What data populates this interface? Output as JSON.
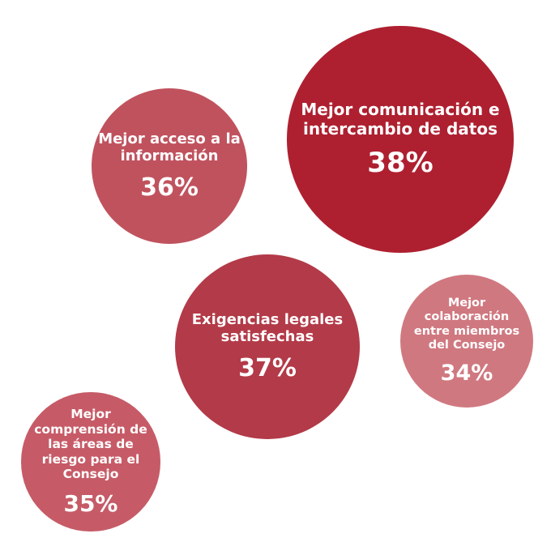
{
  "chart_data": {
    "type": "bubble",
    "categories": [
      "Mejor acceso a la información",
      "Mejor comunicación e intercambio de datos",
      "Exigencias legales satisfechas",
      "Mejor colaboración entre miembros del Consejo",
      "Mejor comprensión de las áreas de riesgo para el Consejo"
    ],
    "values": [
      36,
      38,
      37,
      34,
      35
    ],
    "value_labels": [
      "36%",
      "38%",
      "37%",
      "34%",
      "35%"
    ],
    "colors": [
      "#c0525e",
      "#ae2030",
      "#b33a48",
      "#d07880",
      "#c65b67"
    ]
  }
}
